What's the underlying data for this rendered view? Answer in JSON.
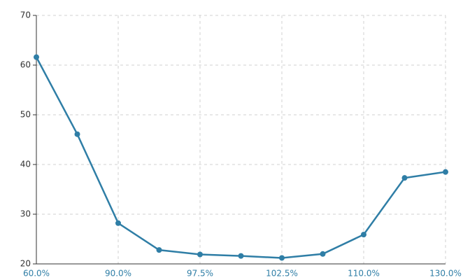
{
  "chart_data": {
    "type": "line",
    "categories": [
      "60.0%",
      null,
      "90.0%",
      null,
      "97.5%",
      null,
      "102.5%",
      null,
      "110.0%",
      null,
      "130.0%"
    ],
    "values": [
      61.6,
      46.1,
      28.2,
      22.8,
      21.9,
      21.6,
      21.2,
      22.0,
      25.9,
      37.3,
      38.5
    ],
    "color": "#2f7ea6",
    "ylim": [
      20,
      70
    ],
    "yticks": [
      20,
      30,
      40,
      50,
      60,
      70
    ],
    "grid": true
  }
}
